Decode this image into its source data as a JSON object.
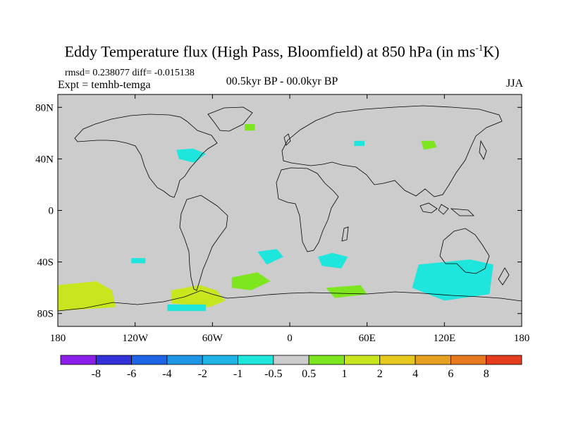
{
  "title": {
    "main": "Eddy Temperature flux (High Pass, Bloomfield) at 850 hPa (in ms",
    "exp": "-1",
    "tail": "K)"
  },
  "stats": "rmsd= 0.238077 diff= -0.015138",
  "expt": "Expt = temhb-temga",
  "period": "00.5kyr BP - 00.0kyr BP",
  "season": "JJA",
  "chart_data": {
    "type": "heatmap",
    "projection": "cylindrical-equidistant",
    "x_range": [
      -180,
      180
    ],
    "y_range": [
      -90,
      90
    ],
    "x_ticks": [
      {
        "value": -180,
        "label": "180"
      },
      {
        "value": -120,
        "label": "120W"
      },
      {
        "value": -60,
        "label": "60W"
      },
      {
        "value": 0,
        "label": "0"
      },
      {
        "value": 60,
        "label": "60E"
      },
      {
        "value": 120,
        "label": "120E"
      },
      {
        "value": 180,
        "label": "180"
      }
    ],
    "y_ticks": [
      {
        "value": 80,
        "label": "80N"
      },
      {
        "value": 40,
        "label": "40N"
      },
      {
        "value": 0,
        "label": "0"
      },
      {
        "value": -40,
        "label": "40S"
      },
      {
        "value": -80,
        "label": "80S"
      }
    ],
    "background_color": "#cccccc",
    "colorbar": {
      "levels": [
        "-8",
        "-6",
        "-4",
        "-2",
        "-1",
        "-0.5",
        "0.5",
        "1",
        "2",
        "4",
        "6",
        "8"
      ],
      "colors": [
        "#8c1eea",
        "#3232d8",
        "#1e64e6",
        "#1e96e6",
        "#1eb4e6",
        "#1ee6dc",
        "#cccccc",
        "#7ee61e",
        "#c8e61e",
        "#e6c81e",
        "#e6a01e",
        "#e6781e",
        "#e63c1e"
      ]
    },
    "anomaly_regions": [
      {
        "name": "arctic-atlantic-positive",
        "value": 0.7,
        "lonlat": [
          [
            -35,
            62
          ],
          [
            -27,
            62
          ],
          [
            -27,
            67
          ],
          [
            -35,
            67
          ]
        ]
      },
      {
        "name": "north-atlantic-coast-negative",
        "value": -0.7,
        "lonlat": [
          [
            -88,
            47
          ],
          [
            -75,
            48
          ],
          [
            -65,
            44
          ],
          [
            -74,
            37
          ],
          [
            -86,
            40
          ]
        ]
      },
      {
        "name": "caspian-negative",
        "value": -0.7,
        "lonlat": [
          [
            50,
            54
          ],
          [
            58,
            54
          ],
          [
            58,
            50
          ],
          [
            50,
            50
          ]
        ]
      },
      {
        "name": "mongolia-positive",
        "value": 0.7,
        "lonlat": [
          [
            102,
            54
          ],
          [
            112,
            54
          ],
          [
            114,
            49
          ],
          [
            104,
            47
          ]
        ]
      },
      {
        "name": "south-pacific-negative-small",
        "value": -0.7,
        "lonlat": [
          [
            -123,
            -37
          ],
          [
            -112,
            -37
          ],
          [
            -112,
            -41
          ],
          [
            -123,
            -41
          ]
        ]
      },
      {
        "name": "south-atlantic-negative",
        "value": -0.7,
        "lonlat": [
          [
            -25,
            -32
          ],
          [
            -10,
            -30
          ],
          [
            -5,
            -36
          ],
          [
            -18,
            -42
          ]
        ]
      },
      {
        "name": "south-africa-negative",
        "value": -0.7,
        "lonlat": [
          [
            22,
            -36
          ],
          [
            33,
            -33
          ],
          [
            45,
            -36
          ],
          [
            40,
            -45
          ],
          [
            25,
            -43
          ]
        ]
      },
      {
        "name": "south-australia-negative",
        "value": -0.7,
        "lonlat": [
          [
            100,
            -42
          ],
          [
            140,
            -38
          ],
          [
            158,
            -42
          ],
          [
            155,
            -65
          ],
          [
            120,
            -70
          ],
          [
            95,
            -60
          ]
        ]
      },
      {
        "name": "south-pacific-positive",
        "value": 1.5,
        "lonlat": [
          [
            -180,
            -58
          ],
          [
            -150,
            -55
          ],
          [
            -138,
            -62
          ],
          [
            -135,
            -75
          ],
          [
            -180,
            -78
          ]
        ]
      },
      {
        "name": "drake-passage-positive",
        "value": 1.5,
        "lonlat": [
          [
            -92,
            -62
          ],
          [
            -70,
            -58
          ],
          [
            -57,
            -62
          ],
          [
            -50,
            -70
          ],
          [
            -62,
            -75
          ],
          [
            -92,
            -72
          ]
        ]
      },
      {
        "name": "south-atlantic-positive",
        "value": 0.7,
        "lonlat": [
          [
            -45,
            -52
          ],
          [
            -25,
            -48
          ],
          [
            -15,
            -55
          ],
          [
            -30,
            -62
          ],
          [
            -45,
            -60
          ]
        ]
      },
      {
        "name": "indian-ocean-positive",
        "value": 0.7,
        "lonlat": [
          [
            28,
            -60
          ],
          [
            55,
            -58
          ],
          [
            60,
            -65
          ],
          [
            35,
            -68
          ]
        ]
      },
      {
        "name": "weddell-negative",
        "value": -0.7,
        "lonlat": [
          [
            -95,
            -73
          ],
          [
            -65,
            -73
          ],
          [
            -65,
            -78
          ],
          [
            -95,
            -78
          ]
        ]
      }
    ]
  }
}
